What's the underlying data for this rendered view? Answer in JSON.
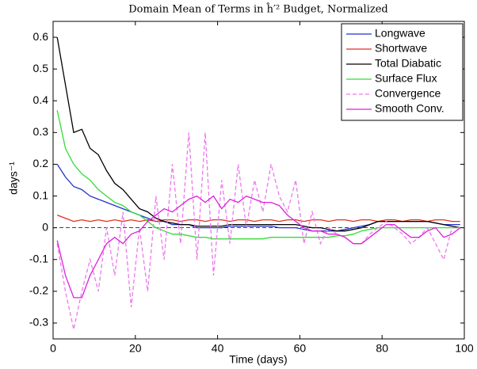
{
  "chart_data": {
    "type": "line",
    "title": "Domain Mean of Terms in ĥ′² Budget, Normalized",
    "xlabel": "Time (days)",
    "ylabel": "days⁻¹",
    "xlim": [
      0,
      100
    ],
    "ylim": [
      -0.35,
      0.65
    ],
    "xticks": [
      0,
      20,
      40,
      60,
      80,
      100
    ],
    "yticks": [
      -0.3,
      -0.2,
      -0.1,
      0,
      0.1,
      0.2,
      0.3,
      0.4,
      0.5,
      0.6
    ],
    "reference_line": 0,
    "legend": "upper right",
    "x": [
      1,
      3,
      5,
      7,
      9,
      11,
      13,
      15,
      17,
      19,
      21,
      23,
      25,
      27,
      29,
      31,
      33,
      35,
      37,
      39,
      41,
      43,
      45,
      47,
      49,
      51,
      53,
      55,
      57,
      59,
      61,
      63,
      65,
      67,
      69,
      71,
      73,
      75,
      77,
      79,
      81,
      83,
      85,
      87,
      89,
      91,
      93,
      95,
      97,
      99
    ],
    "series": [
      {
        "name": "Longwave",
        "color": "#2233cc",
        "line_style": "solid",
        "values": [
          0.2,
          0.16,
          0.13,
          0.12,
          0.1,
          0.09,
          0.08,
          0.07,
          0.06,
          0.05,
          0.04,
          0.03,
          0.02,
          0.02,
          0.01,
          0.01,
          0.01,
          0.0,
          0.0,
          0.0,
          0.0,
          0.005,
          0.005,
          0.005,
          0.005,
          0.005,
          0.005,
          0.0,
          0.0,
          0.0,
          -0.005,
          -0.01,
          -0.01,
          -0.01,
          -0.01,
          -0.005,
          0.0,
          0.005,
          0.01,
          0.02,
          0.02,
          0.02,
          0.02,
          0.02,
          0.02,
          0.02,
          0.015,
          0.01,
          0.01,
          0.01
        ]
      },
      {
        "name": "Shortwave",
        "color": "#dd3322",
        "line_style": "solid",
        "values": [
          0.04,
          0.03,
          0.02,
          0.025,
          0.02,
          0.025,
          0.02,
          0.025,
          0.02,
          0.025,
          0.02,
          0.025,
          0.02,
          0.025,
          0.025,
          0.02,
          0.025,
          0.025,
          0.02,
          0.025,
          0.025,
          0.02,
          0.025,
          0.025,
          0.02,
          0.025,
          0.025,
          0.02,
          0.025,
          0.025,
          0.02,
          0.025,
          0.025,
          0.02,
          0.025,
          0.025,
          0.02,
          0.025,
          0.025,
          0.02,
          0.025,
          0.025,
          0.02,
          0.025,
          0.025,
          0.02,
          0.025,
          0.025,
          0.02,
          0.02
        ]
      },
      {
        "name": "Total Diabatic",
        "color": "#000000",
        "line_style": "solid",
        "values": [
          0.6,
          0.45,
          0.3,
          0.31,
          0.25,
          0.23,
          0.18,
          0.14,
          0.12,
          0.09,
          0.06,
          0.05,
          0.03,
          0.02,
          0.015,
          0.01,
          0.01,
          0.005,
          0.005,
          0.005,
          0.005,
          0.01,
          0.01,
          0.01,
          0.01,
          0.01,
          0.01,
          0.01,
          0.01,
          0.01,
          0.005,
          0.0,
          0.0,
          -0.005,
          -0.01,
          -0.01,
          -0.005,
          0.0,
          0.01,
          0.02,
          0.02,
          0.02,
          0.02,
          0.02,
          0.02,
          0.02,
          0.015,
          0.01,
          0.005,
          0.0
        ]
      },
      {
        "name": "Surface Flux",
        "color": "#33dd33",
        "line_style": "solid",
        "values": [
          0.37,
          0.25,
          0.2,
          0.17,
          0.15,
          0.12,
          0.1,
          0.08,
          0.07,
          0.05,
          0.04,
          0.02,
          0.0,
          -0.01,
          -0.02,
          -0.02,
          -0.025,
          -0.03,
          -0.03,
          -0.035,
          -0.035,
          -0.035,
          -0.035,
          -0.035,
          -0.035,
          -0.035,
          -0.03,
          -0.03,
          -0.03,
          -0.03,
          -0.03,
          -0.03,
          -0.03,
          -0.03,
          -0.025,
          -0.025,
          -0.02,
          -0.01,
          -0.005,
          0.0,
          0.0,
          0.0,
          0.0,
          0.0,
          0.0,
          0.0,
          0.0,
          0.0,
          0.0,
          0.0
        ]
      },
      {
        "name": "Convergence",
        "color": "#ee77ee",
        "line_style": "dashed",
        "values": [
          -0.05,
          -0.2,
          -0.32,
          -0.2,
          -0.1,
          -0.2,
          0.0,
          -0.15,
          0.05,
          -0.25,
          0.0,
          -0.2,
          0.1,
          -0.1,
          0.2,
          -0.05,
          0.3,
          -0.1,
          0.3,
          -0.15,
          0.15,
          -0.05,
          0.2,
          0.0,
          0.15,
          0.05,
          0.2,
          0.1,
          0.05,
          0.15,
          -0.05,
          0.05,
          -0.05,
          0.0,
          -0.02,
          -0.03,
          -0.05,
          -0.05,
          -0.02,
          0.0,
          0.02,
          0.0,
          -0.02,
          -0.05,
          -0.03,
          0.0,
          -0.05,
          -0.1,
          0.0,
          0.0
        ]
      },
      {
        "name": "Smooth Conv.",
        "color": "#dd22dd",
        "line_style": "solid",
        "values": [
          -0.04,
          -0.15,
          -0.22,
          -0.22,
          -0.15,
          -0.1,
          -0.05,
          -0.03,
          -0.05,
          -0.02,
          -0.01,
          0.02,
          0.04,
          0.06,
          0.05,
          0.07,
          0.09,
          0.1,
          0.08,
          0.1,
          0.06,
          0.09,
          0.08,
          0.1,
          0.09,
          0.08,
          0.08,
          0.07,
          0.04,
          0.02,
          0.0,
          -0.01,
          -0.01,
          -0.02,
          -0.02,
          -0.03,
          -0.05,
          -0.05,
          -0.03,
          -0.01,
          0.01,
          0.01,
          -0.01,
          -0.03,
          -0.03,
          -0.01,
          0.0,
          -0.03,
          -0.02,
          0.0
        ]
      }
    ]
  }
}
